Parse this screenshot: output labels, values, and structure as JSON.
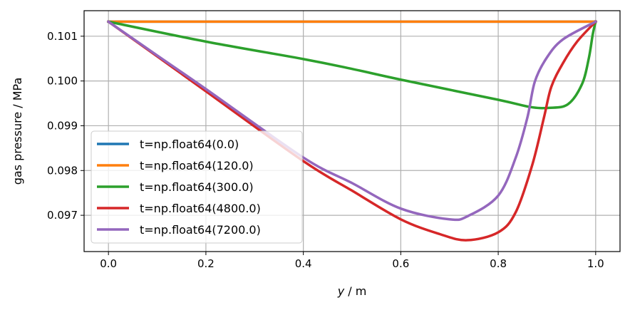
{
  "chart_data": {
    "type": "line",
    "title": "",
    "xlabel_var": "y",
    "xlabel_unit": " / m",
    "ylabel": "gas pressure / MPa",
    "xlim": [
      -0.05,
      1.05
    ],
    "ylim": [
      0.09619,
      0.10157
    ],
    "xticks": [
      0.0,
      0.2,
      0.4,
      0.6,
      0.8,
      1.0
    ],
    "xtick_labels": [
      "0.0",
      "0.2",
      "0.4",
      "0.6",
      "0.8",
      "1.0"
    ],
    "yticks": [
      0.097,
      0.098,
      0.099,
      0.1,
      0.101
    ],
    "ytick_labels": [
      "0.097",
      "0.098",
      "0.099",
      "0.100",
      "0.101"
    ],
    "grid": true,
    "legend_placement": "lower-left",
    "series": [
      {
        "name": "t=np.float64(0.0)",
        "color": "#1f77b4",
        "x": [
          0,
          1.0
        ],
        "y": [
          0.101325,
          0.101325
        ]
      },
      {
        "name": "t=np.float64(120.0)",
        "color": "#ff7f0e",
        "x": [
          0,
          1.0
        ],
        "y": [
          0.101325,
          0.101325
        ]
      },
      {
        "name": "t=np.float64(300.0)",
        "color": "#2ca02c",
        "x": [
          0,
          0.2,
          0.4,
          0.5,
          0.6,
          0.8,
          0.865,
          0.904,
          0.943,
          0.972,
          0.986,
          0.994,
          1.0
        ],
        "y": [
          0.101325,
          0.10088,
          0.10049,
          0.10027,
          0.10003,
          0.09958,
          0.09942,
          0.0994,
          0.09948,
          0.09993,
          0.10051,
          0.10104,
          0.101325
        ]
      },
      {
        "name": "t=np.float64(4800.0)",
        "color": "#d62728",
        "x": [
          0,
          0.1,
          0.2,
          0.4,
          0.5,
          0.6,
          0.68,
          0.736,
          0.8,
          0.836,
          0.87,
          0.894,
          0.909,
          0.933,
          0.962,
          1.0
        ],
        "y": [
          0.101325,
          0.10055,
          0.09977,
          0.09821,
          0.09755,
          0.09691,
          0.09658,
          0.096444,
          0.09662,
          0.09707,
          0.09813,
          0.09919,
          0.09987,
          0.1004,
          0.10088,
          0.101325
        ]
      },
      {
        "name": "t=np.float64(7200.0)",
        "color": "#9467bd",
        "x": [
          0,
          0.1,
          0.2,
          0.4,
          0.5,
          0.6,
          0.7,
          0.739,
          0.8,
          0.836,
          0.86,
          0.875,
          0.899,
          0.933,
          1.0
        ],
        "y": [
          0.101325,
          0.10057,
          0.09982,
          0.09829,
          0.09772,
          0.09715,
          0.09691,
          0.09699,
          0.09744,
          0.09829,
          0.09919,
          0.09998,
          0.10051,
          0.10093,
          0.101325
        ]
      }
    ]
  }
}
